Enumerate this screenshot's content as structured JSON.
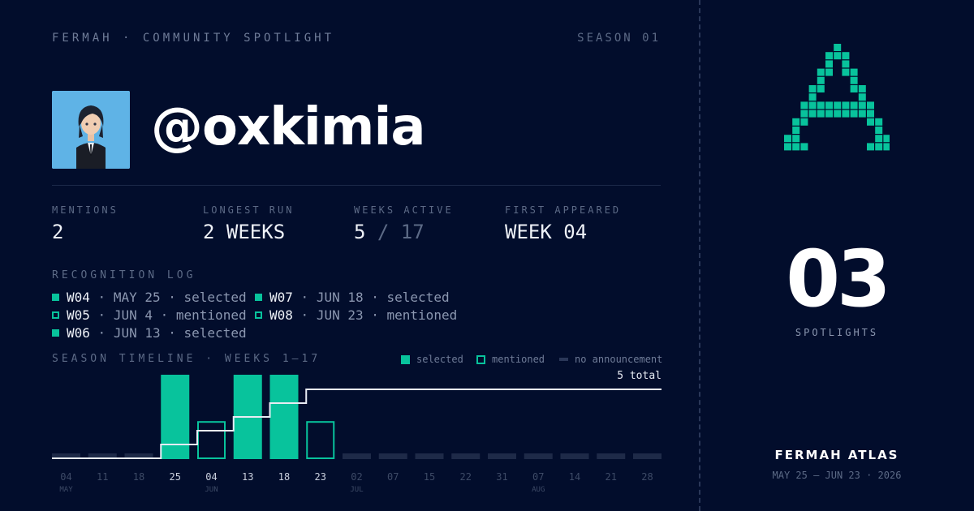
{
  "header": {
    "left": "FERMAH · COMMUNITY SPOTLIGHT",
    "right": "SEASON 01"
  },
  "profile": {
    "handle": "@oxkimia"
  },
  "stats": [
    {
      "label": "MENTIONS",
      "value": "2"
    },
    {
      "label": "LONGEST RUN",
      "value": "2 WEEKS"
    },
    {
      "label": "WEEKS ACTIVE",
      "value": "5",
      "total": "/ 17"
    },
    {
      "label": "FIRST APPEARED",
      "value": "WEEK 04"
    }
  ],
  "log": {
    "title": "RECOGNITION LOG",
    "entries": [
      {
        "week": "W04",
        "date": "MAY 25",
        "status": "selected"
      },
      {
        "week": "W05",
        "date": "JUN 4",
        "status": "mentioned"
      },
      {
        "week": "W06",
        "date": "JUN 13",
        "status": "selected"
      },
      {
        "week": "W07",
        "date": "JUN 18",
        "status": "selected"
      },
      {
        "week": "W08",
        "date": "JUN 23",
        "status": "mentioned"
      }
    ]
  },
  "timeline": {
    "title": "SEASON TIMELINE · WEEKS 1–17",
    "legend": {
      "selected": "selected",
      "mentioned": "mentioned",
      "none": "no announcement"
    },
    "total_label": "5 total",
    "colors": {
      "selected": "#08c39c",
      "none": "#1e2a48",
      "line": "#e8ecf4"
    }
  },
  "chart_data": {
    "type": "bar",
    "categories": [
      "04",
      "11",
      "18",
      "25",
      "04",
      "13",
      "18",
      "23",
      "02",
      "07",
      "15",
      "22",
      "31",
      "07",
      "14",
      "21",
      "28"
    ],
    "month_labels": [
      {
        "index": 0,
        "label": "MAY"
      },
      {
        "index": 4,
        "label": "JUN"
      },
      {
        "index": 8,
        "label": "JUL"
      },
      {
        "index": 13,
        "label": "AUG"
      }
    ],
    "status": [
      "none",
      "none",
      "none",
      "selected",
      "mentioned",
      "selected",
      "selected",
      "mentioned",
      "none",
      "none",
      "none",
      "none",
      "none",
      "none",
      "none",
      "none",
      "none"
    ],
    "cumulative": [
      0,
      0,
      0,
      1,
      2,
      3,
      4,
      5,
      5,
      5,
      5,
      5,
      5,
      5,
      5,
      5,
      5
    ],
    "total": 5
  },
  "sidebar": {
    "count": "03",
    "count_label": "SPOTLIGHTS",
    "title": "FERMAH ATLAS",
    "dates": "MAY 25 — JUN 23 · 2026",
    "logo_color": "#08c39c"
  }
}
